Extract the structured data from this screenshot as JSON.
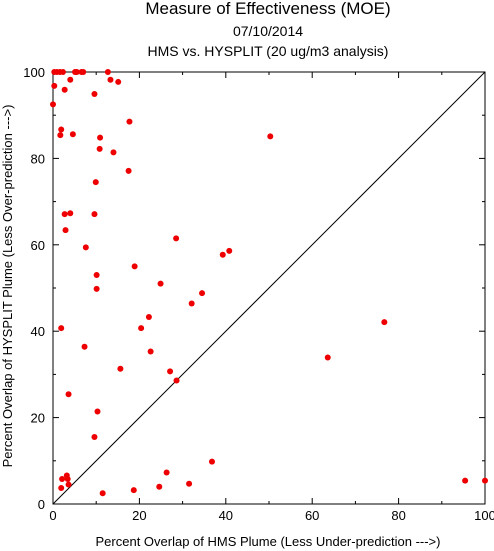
{
  "chart_data": {
    "type": "scatter",
    "title": "Measure of Effectiveness (MOE)",
    "subtitle_date": "07/10/2014",
    "subtitle_analysis": "HMS vs. HYSPLIT  (20 ug/m3 analysis)",
    "xlabel": "Percent Overlap of HMS Plume (Less Under-prediction --->)",
    "ylabel": "Percent Overlap of HYSPLIT Plume (Less Over-prediction --->)",
    "xlim": [
      0,
      100
    ],
    "ylim": [
      0,
      100
    ],
    "xticks": [
      0,
      20,
      40,
      60,
      80,
      100
    ],
    "yticks": [
      0,
      20,
      40,
      60,
      80,
      100
    ],
    "xtick_labels": [
      "0",
      "20",
      "40",
      "60",
      "80",
      "100"
    ],
    "ytick_labels": [
      "0",
      "20",
      "40",
      "60",
      "80",
      "100"
    ],
    "reference_line": "y = x diagonal",
    "grid": false,
    "legend": "none",
    "point_color": "#ee0000",
    "points": [
      {
        "x": 0.3,
        "y": 100
      },
      {
        "x": 0.9,
        "y": 100
      },
      {
        "x": 1.6,
        "y": 100
      },
      {
        "x": 2.3,
        "y": 100
      },
      {
        "x": 5.1,
        "y": 100
      },
      {
        "x": 5.5,
        "y": 100
      },
      {
        "x": 6.6,
        "y": 100
      },
      {
        "x": 7.0,
        "y": 100
      },
      {
        "x": 12.7,
        "y": 100
      },
      {
        "x": 0.3,
        "y": 96.8
      },
      {
        "x": 2.7,
        "y": 95.9
      },
      {
        "x": 4.0,
        "y": 98.2
      },
      {
        "x": 13.3,
        "y": 98.2
      },
      {
        "x": 15.1,
        "y": 97.7
      },
      {
        "x": 9.6,
        "y": 94.9
      },
      {
        "x": 0.0,
        "y": 92.5
      },
      {
        "x": 17.7,
        "y": 88.5
      },
      {
        "x": 1.9,
        "y": 86.7
      },
      {
        "x": 1.7,
        "y": 85.4
      },
      {
        "x": 4.6,
        "y": 85.6
      },
      {
        "x": 10.9,
        "y": 84.8
      },
      {
        "x": 50.3,
        "y": 85.1
      },
      {
        "x": 10.8,
        "y": 82.2
      },
      {
        "x": 14.0,
        "y": 81.4
      },
      {
        "x": 17.5,
        "y": 77.1
      },
      {
        "x": 9.9,
        "y": 74.5
      },
      {
        "x": 4.0,
        "y": 67.3
      },
      {
        "x": 2.7,
        "y": 67.1
      },
      {
        "x": 9.6,
        "y": 67.1
      },
      {
        "x": 2.9,
        "y": 63.4
      },
      {
        "x": 28.5,
        "y": 61.5
      },
      {
        "x": 7.6,
        "y": 59.4
      },
      {
        "x": 40.8,
        "y": 58.6
      },
      {
        "x": 39.3,
        "y": 57.7
      },
      {
        "x": 18.9,
        "y": 55.0
      },
      {
        "x": 10.1,
        "y": 53.0
      },
      {
        "x": 24.9,
        "y": 51.0
      },
      {
        "x": 10.1,
        "y": 49.8
      },
      {
        "x": 34.5,
        "y": 48.8
      },
      {
        "x": 32.1,
        "y": 46.4
      },
      {
        "x": 22.2,
        "y": 43.3
      },
      {
        "x": 76.7,
        "y": 42.1
      },
      {
        "x": 1.9,
        "y": 40.7
      },
      {
        "x": 20.4,
        "y": 40.7
      },
      {
        "x": 7.3,
        "y": 36.4
      },
      {
        "x": 22.6,
        "y": 35.3
      },
      {
        "x": 63.6,
        "y": 33.9
      },
      {
        "x": 15.6,
        "y": 31.3
      },
      {
        "x": 27.1,
        "y": 30.7
      },
      {
        "x": 28.6,
        "y": 28.6
      },
      {
        "x": 3.6,
        "y": 25.4
      },
      {
        "x": 10.3,
        "y": 21.4
      },
      {
        "x": 9.6,
        "y": 15.5
      },
      {
        "x": 36.8,
        "y": 9.8
      },
      {
        "x": 26.3,
        "y": 7.3
      },
      {
        "x": 3.2,
        "y": 6.6
      },
      {
        "x": 2.1,
        "y": 5.8
      },
      {
        "x": 3.4,
        "y": 5.8
      },
      {
        "x": 3.6,
        "y": 4.5
      },
      {
        "x": 31.5,
        "y": 4.7
      },
      {
        "x": 1.9,
        "y": 3.7
      },
      {
        "x": 24.6,
        "y": 4.0
      },
      {
        "x": 18.7,
        "y": 3.2
      },
      {
        "x": 11.5,
        "y": 2.5
      },
      {
        "x": 95.4,
        "y": 5.4
      },
      {
        "x": 100,
        "y": 5.4
      }
    ]
  }
}
